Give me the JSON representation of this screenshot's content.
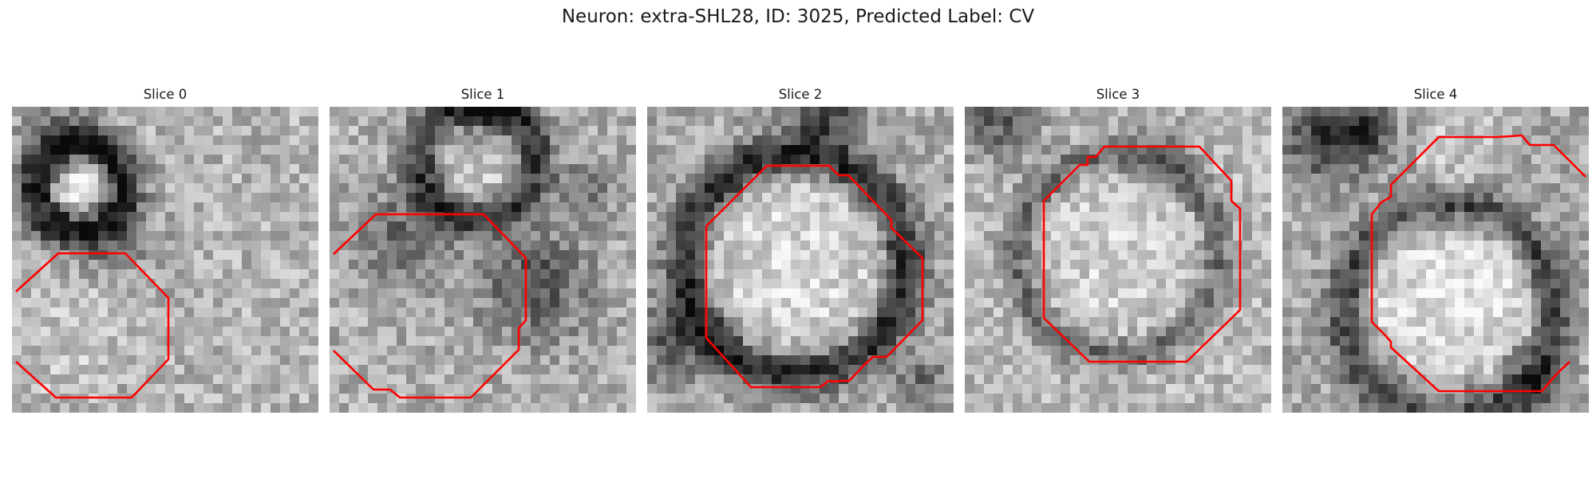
{
  "figure": {
    "title": "Neuron: extra-SHL28, ID: 3025, Predicted Label: CV",
    "contour_color": "#ff0000"
  },
  "panels": [
    {
      "title": "Slice 0"
    },
    {
      "title": "Slice 1"
    },
    {
      "title": "Slice 2"
    },
    {
      "title": "Slice 3"
    },
    {
      "title": "Slice 4"
    }
  ]
}
